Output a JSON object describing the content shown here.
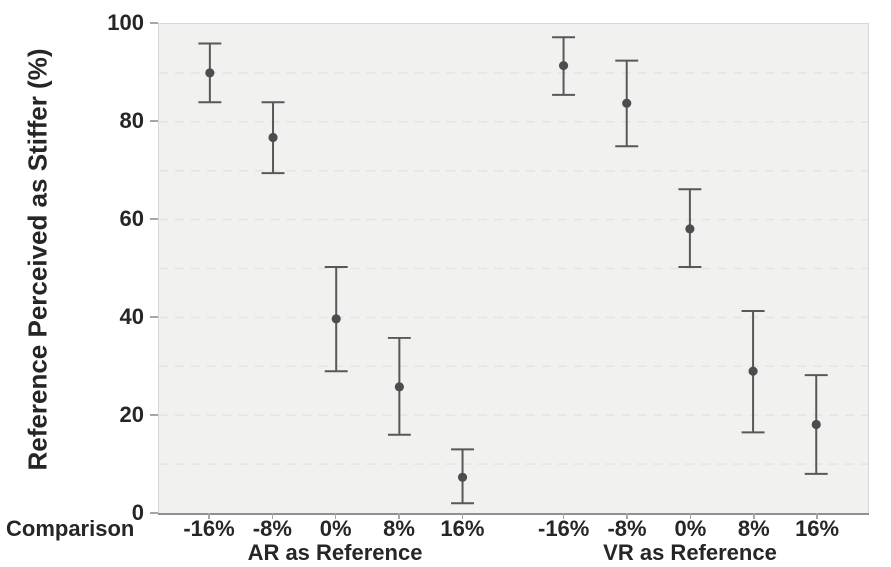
{
  "chart_data": {
    "type": "scatter",
    "subtype": "point-estimates-with-error-bars",
    "title": "",
    "ylabel": "Reference Perceived as Stiffer (%)",
    "xlabel": "Comparison",
    "ylim": [
      0,
      100
    ],
    "y_ticks": [
      0,
      20,
      40,
      60,
      80,
      100
    ],
    "y_grid_interval": 10,
    "grid": "horizontal-dashed-every-10",
    "legend_position": "none",
    "categories": [
      "-16%",
      "-8%",
      "0%",
      "8%",
      "16%"
    ],
    "series": [
      {
        "name": "AR as Reference",
        "means": [
          90.0,
          76.8,
          39.7,
          25.8,
          7.3
        ],
        "ci_low": [
          84.0,
          69.5,
          29.0,
          16.0,
          2.0
        ],
        "ci_high": [
          96.0,
          84.0,
          50.3,
          35.8,
          13.0
        ]
      },
      {
        "name": "VR as Reference",
        "means": [
          91.5,
          83.8,
          58.1,
          29.0,
          18.1
        ],
        "ci_low": [
          85.5,
          75.0,
          50.3,
          16.5,
          8.0
        ],
        "ci_high": [
          97.3,
          92.5,
          66.2,
          41.3,
          28.2
        ]
      }
    ],
    "colors": {
      "marker": "#4d4d4f",
      "error_bar": "#58585a",
      "plot_bg": "#f1f1ef",
      "grid": "#e4e4e2",
      "axis": "#909090",
      "tick": "#a6a6a6",
      "text": "#262626",
      "plot_border": "#d7d7d5"
    }
  }
}
